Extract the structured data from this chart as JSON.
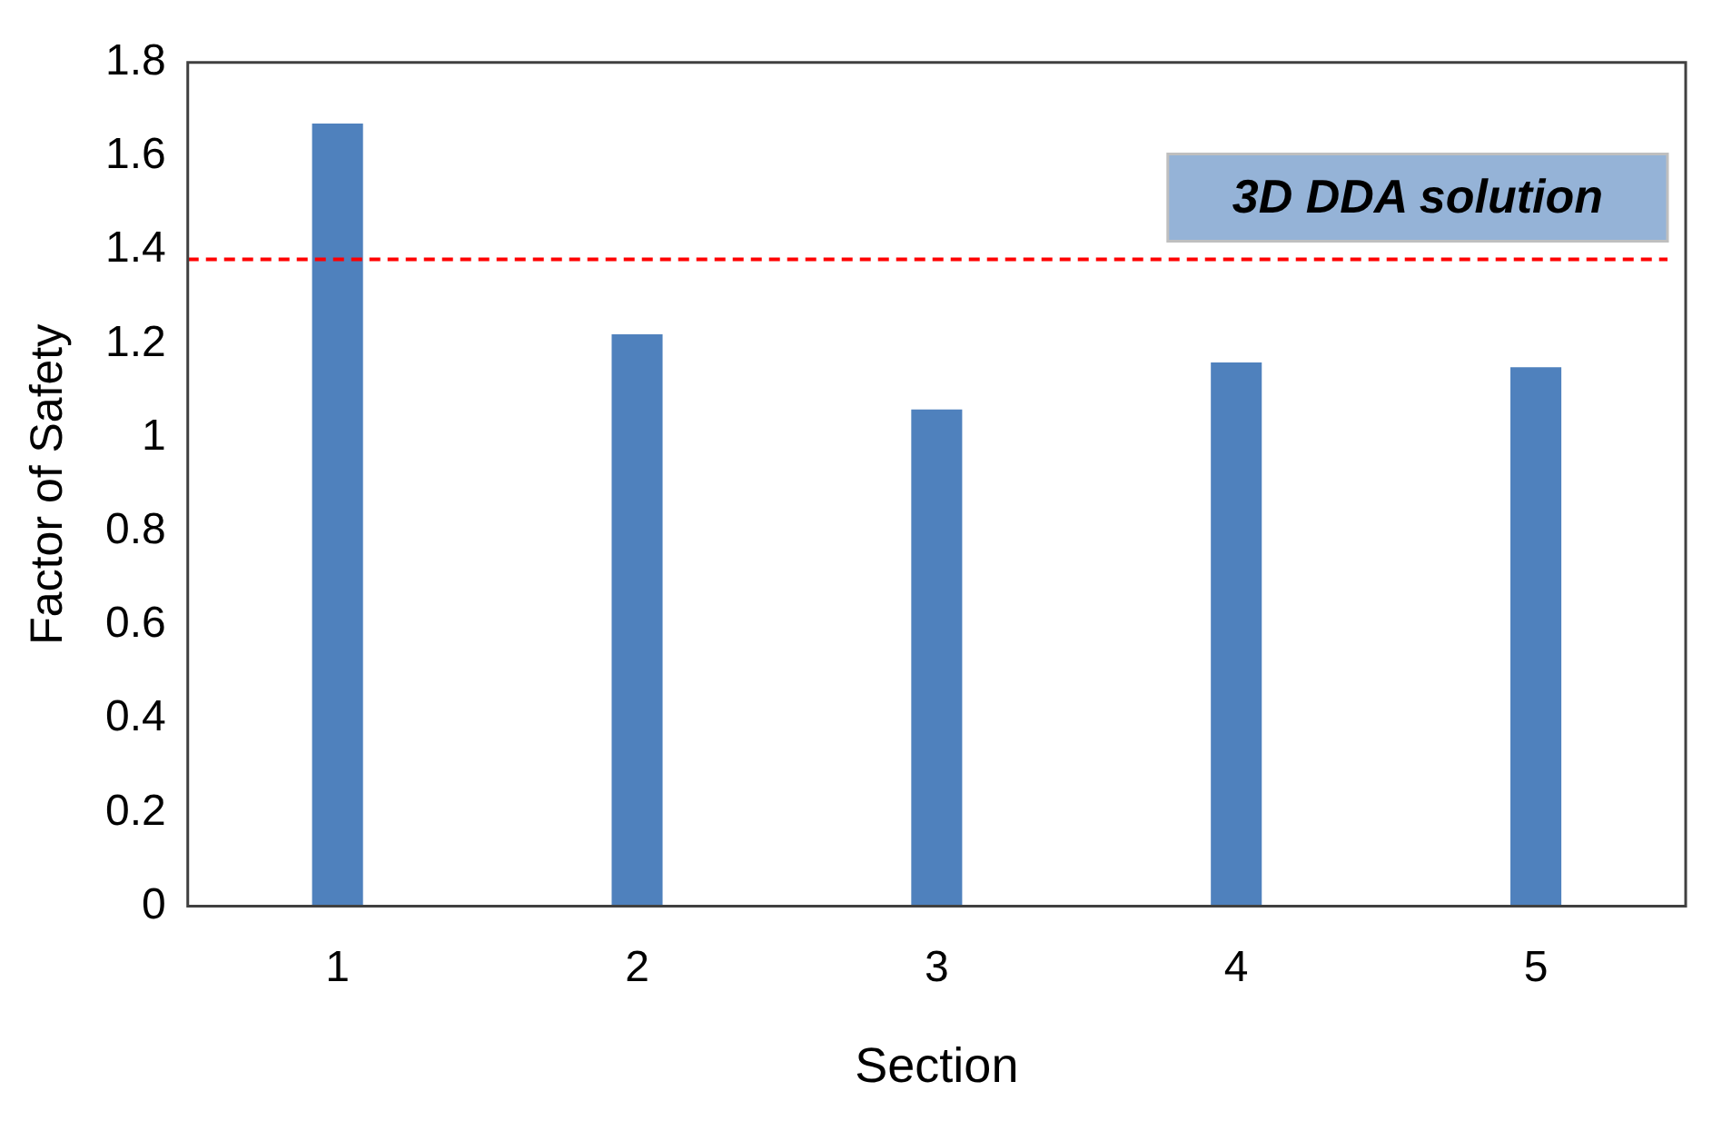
{
  "chart_data": {
    "type": "bar",
    "xlabel": "Section",
    "ylabel": "Factor of Safety",
    "categories": [
      "1",
      "2",
      "3",
      "4",
      "5"
    ],
    "values": [
      1.67,
      1.22,
      1.06,
      1.16,
      1.15
    ],
    "color": "#4f81bd",
    "ylim": [
      0,
      1.8
    ],
    "yticks": [
      0,
      0.2,
      0.4,
      0.6,
      0.8,
      1,
      1.2,
      1.4,
      1.6,
      1.8
    ],
    "grid": false,
    "legend": false,
    "ref_lines": [
      {
        "axis": "y",
        "value": 1.38,
        "label": "3D DDA solution",
        "color": "#ff0000",
        "line_style": "dashed"
      }
    ]
  }
}
